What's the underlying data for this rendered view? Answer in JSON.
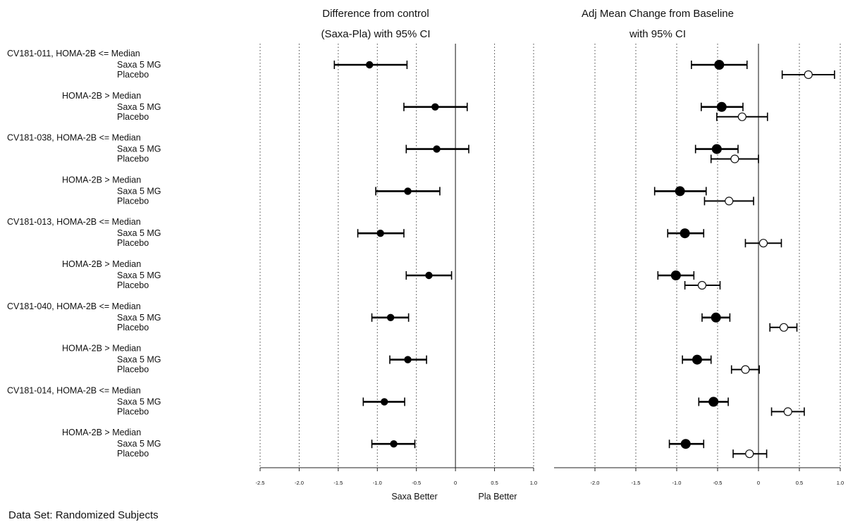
{
  "chart_data": [
    {
      "type": "scatter",
      "title": "Difference from control",
      "subtitle": "(Saxa-Pla) with 95% CI",
      "xlim": [
        -2.5,
        1.0
      ],
      "xticks": [
        "-2.5",
        "-2.0",
        "-1.5",
        "-1.0",
        "-0.5",
        "0",
        "0.5",
        "1.0"
      ],
      "xtick_values": [
        -2.5,
        -2.0,
        -1.5,
        -1.0,
        -0.5,
        0,
        0.5,
        1.0
      ],
      "grid": "vertical dotted",
      "reference_line": 0,
      "xlabel_left": "Saxa Better",
      "xlabel_right": "Pla Better",
      "points": [
        {
          "estimate": -1.1,
          "lower": -1.55,
          "upper": -0.62
        },
        {
          "estimate": -0.26,
          "lower": -0.66,
          "upper": 0.15
        },
        {
          "estimate": -0.24,
          "lower": -0.63,
          "upper": 0.17
        },
        {
          "estimate": -0.61,
          "lower": -1.02,
          "upper": -0.2
        },
        {
          "estimate": -0.96,
          "lower": -1.25,
          "upper": -0.66
        },
        {
          "estimate": -0.34,
          "lower": -0.63,
          "upper": -0.05
        },
        {
          "estimate": -0.83,
          "lower": -1.07,
          "upper": -0.6
        },
        {
          "estimate": -0.61,
          "lower": -0.84,
          "upper": -0.37
        },
        {
          "estimate": -0.91,
          "lower": -1.18,
          "upper": -0.65
        },
        {
          "estimate": -0.79,
          "lower": -1.07,
          "upper": -0.52
        }
      ]
    },
    {
      "type": "scatter",
      "title": "Adj Mean Change from Baseline",
      "subtitle": "with 95% CI",
      "xlim": [
        -2.5,
        1.0
      ],
      "xticks": [
        "-2.0",
        "-1.5",
        "-1.0",
        "-0.5",
        "0",
        "0.5",
        "1.0"
      ],
      "xtick_values": [
        -2.0,
        -1.5,
        -1.0,
        -0.5,
        0,
        0.5,
        1.0
      ],
      "grid": "vertical dotted",
      "reference_line": 0,
      "points": [
        {
          "group": "Saxa 5 MG",
          "estimate": -0.48,
          "lower": -0.82,
          "upper": -0.14
        },
        {
          "group": "Placebo",
          "estimate": 0.61,
          "lower": 0.29,
          "upper": 0.93
        },
        {
          "group": "Saxa 5 MG",
          "estimate": -0.45,
          "lower": -0.7,
          "upper": -0.19
        },
        {
          "group": "Placebo",
          "estimate": -0.2,
          "lower": -0.51,
          "upper": 0.11
        },
        {
          "group": "Saxa 5 MG",
          "estimate": -0.51,
          "lower": -0.77,
          "upper": -0.25
        },
        {
          "group": "Placebo",
          "estimate": -0.29,
          "lower": -0.58,
          "upper": 0.0
        },
        {
          "group": "Saxa 5 MG",
          "estimate": -0.96,
          "lower": -1.27,
          "upper": -0.64
        },
        {
          "group": "Placebo",
          "estimate": -0.36,
          "lower": -0.66,
          "upper": -0.06
        },
        {
          "group": "Saxa 5 MG",
          "estimate": -0.9,
          "lower": -1.11,
          "upper": -0.67
        },
        {
          "group": "Placebo",
          "estimate": 0.06,
          "lower": -0.16,
          "upper": 0.28
        },
        {
          "group": "Saxa 5 MG",
          "estimate": -1.01,
          "lower": -1.23,
          "upper": -0.79
        },
        {
          "group": "Placebo",
          "estimate": -0.69,
          "lower": -0.9,
          "upper": -0.47
        },
        {
          "group": "Saxa 5 MG",
          "estimate": -0.52,
          "lower": -0.69,
          "upper": -0.35
        },
        {
          "group": "Placebo",
          "estimate": 0.31,
          "lower": 0.14,
          "upper": 0.47
        },
        {
          "group": "Saxa 5 MG",
          "estimate": -0.75,
          "lower": -0.93,
          "upper": -0.58
        },
        {
          "group": "Placebo",
          "estimate": -0.16,
          "lower": -0.33,
          "upper": 0.01
        },
        {
          "group": "Saxa 5 MG",
          "estimate": -0.55,
          "lower": -0.73,
          "upper": -0.37
        },
        {
          "group": "Placebo",
          "estimate": 0.36,
          "lower": 0.16,
          "upper": 0.56
        },
        {
          "group": "Saxa 5 MG",
          "estimate": -0.89,
          "lower": -1.09,
          "upper": -0.67
        },
        {
          "group": "Placebo",
          "estimate": -0.11,
          "lower": -0.31,
          "upper": 0.1
        }
      ]
    }
  ],
  "subgroups": [
    {
      "label": "CV181-011, HOMA-2B <= Median",
      "treatment": "Saxa 5 MG",
      "control": "Placebo"
    },
    {
      "label": "HOMA-2B > Median",
      "treatment": "Saxa 5 MG",
      "control": "Placebo"
    },
    {
      "label": "CV181-038, HOMA-2B <= Median",
      "treatment": "Saxa 5 MG",
      "control": "Placebo"
    },
    {
      "label": "HOMA-2B > Median",
      "treatment": "Saxa 5 MG",
      "control": "Placebo"
    },
    {
      "label": "CV181-013, HOMA-2B <= Median",
      "treatment": "Saxa 5 MG",
      "control": "Placebo"
    },
    {
      "label": "HOMA-2B > Median",
      "treatment": "Saxa 5 MG",
      "control": "Placebo"
    },
    {
      "label": "CV181-040, HOMA-2B <= Median",
      "treatment": "Saxa 5 MG",
      "control": "Placebo"
    },
    {
      "label": "HOMA-2B > Median",
      "treatment": "Saxa 5 MG",
      "control": "Placebo"
    },
    {
      "label": "CV181-014, HOMA-2B <= Median",
      "treatment": "Saxa 5 MG",
      "control": "Placebo"
    },
    {
      "label": "HOMA-2B > Median",
      "treatment": "Saxa 5 MG",
      "control": "Placebo"
    }
  ],
  "footer": "Data Set: Randomized Subjects"
}
